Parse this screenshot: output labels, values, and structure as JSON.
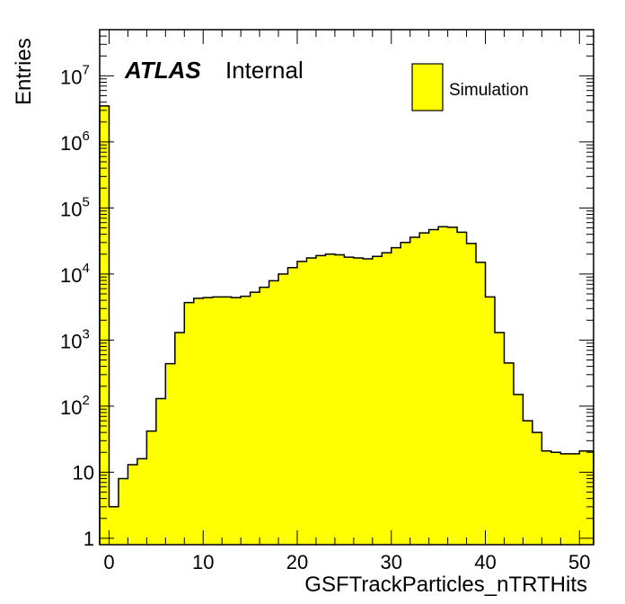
{
  "chart_data": {
    "type": "bar",
    "xlabel": "GSFTrackParticles_nTRTHits",
    "ylabel": "Entries",
    "xlim": [
      -1,
      51.5
    ],
    "ylim": [
      0.8,
      50000000
    ],
    "log_y": true,
    "x_ticks": [
      0,
      10,
      20,
      30,
      40,
      50
    ],
    "y_ticks": [
      {
        "value": 1,
        "base": "1",
        "exp": ""
      },
      {
        "value": 10,
        "base": "10",
        "exp": ""
      },
      {
        "value": 100,
        "base": "10",
        "exp": "2"
      },
      {
        "value": 1000,
        "base": "10",
        "exp": "3"
      },
      {
        "value": 10000,
        "base": "10",
        "exp": "4"
      },
      {
        "value": 100000,
        "base": "10",
        "exp": "5"
      },
      {
        "value": 1000000,
        "base": "10",
        "exp": "6"
      },
      {
        "value": 10000000,
        "base": "10",
        "exp": "7"
      }
    ],
    "bin_edges": [
      -1,
      0,
      1,
      2,
      3,
      4,
      5,
      6,
      7,
      8,
      9,
      10,
      11,
      12,
      13,
      14,
      15,
      16,
      17,
      18,
      19,
      20,
      21,
      22,
      23,
      24,
      25,
      26,
      27,
      28,
      29,
      30,
      31,
      32,
      33,
      34,
      35,
      36,
      37,
      38,
      39,
      40,
      41,
      42,
      43,
      44,
      45,
      46,
      47,
      48,
      49,
      50,
      51.5
    ],
    "values": [
      3500000,
      3,
      8,
      13,
      16,
      42,
      130,
      440,
      1300,
      3700,
      4300,
      4400,
      4500,
      4500,
      4400,
      4600,
      5300,
      6300,
      7900,
      10000,
      12500,
      15500,
      17500,
      19000,
      20000,
      19500,
      18000,
      17500,
      17000,
      18500,
      21000,
      25000,
      30000,
      36000,
      42000,
      47000,
      52000,
      51000,
      43000,
      29000,
      15000,
      4500,
      1300,
      450,
      150,
      60,
      40,
      21,
      20,
      19,
      19,
      21
    ],
    "series": [
      {
        "name": "Simulation",
        "color": "#ffff00"
      }
    ],
    "legend_position": "top-right",
    "grid": false,
    "annotation": {
      "atlas": "ATLAS",
      "status": "Internal"
    }
  }
}
